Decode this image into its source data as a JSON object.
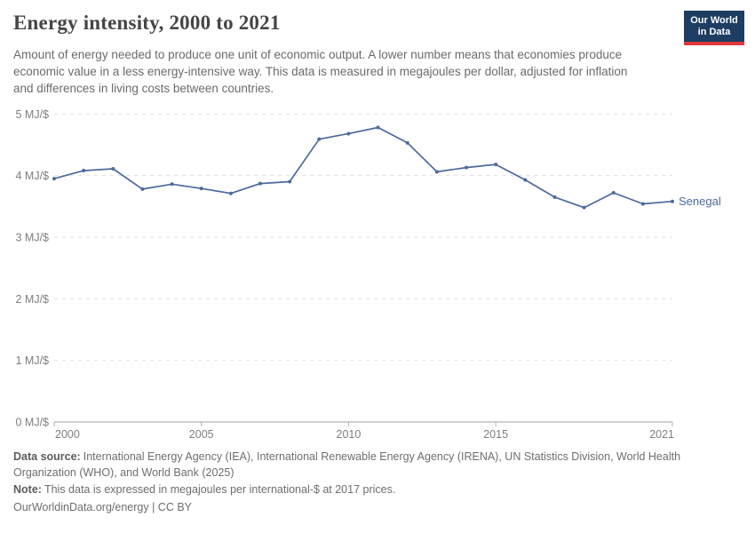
{
  "header": {
    "title": "Energy intensity, 2000 to 2021",
    "subtitle": "Amount of energy needed to produce one unit of economic output. A lower number means that economies produce economic value in a less energy-intensive way. This data is measured in megajoules per dollar, adjusted for inflation and differences in living costs between countries.",
    "logo": {
      "line1": "Our World",
      "line2": "in Data"
    }
  },
  "chart_data": {
    "type": "line",
    "title": "Energy intensity, 2000 to 2021",
    "x": [
      2000,
      2001,
      2002,
      2003,
      2004,
      2005,
      2006,
      2007,
      2008,
      2009,
      2010,
      2011,
      2012,
      2013,
      2014,
      2015,
      2016,
      2017,
      2018,
      2019,
      2020,
      2021
    ],
    "series": [
      {
        "name": "Senegal",
        "color": "#4c6a9c",
        "values": [
          3.95,
          4.08,
          4.11,
          3.78,
          3.86,
          3.79,
          3.71,
          3.87,
          3.9,
          4.59,
          4.68,
          4.78,
          4.53,
          4.06,
          4.13,
          4.18,
          3.93,
          3.65,
          3.48,
          3.72,
          3.54,
          3.58
        ]
      }
    ],
    "xlabel": "",
    "ylabel": "MJ/$",
    "ylim": [
      0,
      5
    ],
    "yticks": [
      0,
      1,
      2,
      3,
      4,
      5
    ],
    "ytick_labels": [
      "0 MJ/$",
      "1 MJ/$",
      "2 MJ/$",
      "3 MJ/$",
      "4 MJ/$",
      "5 MJ/$"
    ],
    "xticks": [
      2000,
      2005,
      2010,
      2015,
      2021
    ],
    "grid": "horizontal-dashed",
    "legend_position": "line-end-label"
  },
  "footer": {
    "source_label": "Data source:",
    "source_text": "International Energy Agency (IEA), International Renewable Energy Agency (IRENA), UN Statistics Division, World Health Organization (WHO), and World Bank (2025)",
    "note_label": "Note:",
    "note_text": "This data is expressed in megajoules per international-$ at 2017 prices.",
    "link": "OurWorldinData.org/energy | CC BY"
  },
  "colors": {
    "series_line": "#4c6a9c",
    "grid_line": "#e0e0e0",
    "axis_line": "#a0a0a0",
    "tick_mark": "#b3b3b3",
    "axis_text": "#7e7e7e",
    "logo_navy": "#1d3d63",
    "logo_red": "#e0373c"
  }
}
